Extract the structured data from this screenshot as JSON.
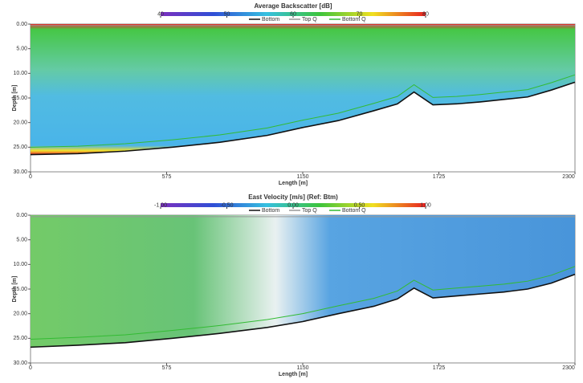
{
  "chart_data": [
    {
      "type": "heatmap",
      "title": "Average Backscatter [dB]",
      "xlabel": "Length [m]",
      "ylabel": "Depth [m]",
      "xlim": [
        0,
        2300
      ],
      "xticks": [
        0,
        575,
        1150,
        1725,
        2300
      ],
      "ylim": [
        0,
        30
      ],
      "y_reversed": true,
      "yticks": [
        {
          "value": 0,
          "label": "0.00"
        },
        {
          "value": 5,
          "label": "5.00"
        },
        {
          "value": 10,
          "label": "10.00"
        },
        {
          "value": 15,
          "label": "15.00"
        },
        {
          "value": 20,
          "label": "20.00"
        },
        {
          "value": 25,
          "label": "25.00"
        },
        {
          "value": 30,
          "label": "30.00"
        }
      ],
      "colorbar": {
        "clim": [
          40,
          80
        ],
        "ticks": [
          40,
          50,
          60,
          70,
          80
        ],
        "colors": [
          "#7b2fbe",
          "#2f4fd6",
          "#36c0e0",
          "#3cc43c",
          "#f0e020",
          "#e82020"
        ]
      },
      "x": [
        0,
        200,
        400,
        600,
        800,
        1000,
        1150,
        1300,
        1450,
        1550,
        1620,
        1700,
        1800,
        1900,
        2000,
        2100,
        2200,
        2300
      ],
      "series": [
        {
          "name": "Bottom",
          "color": "#111111",
          "values": [
            26.5,
            26.3,
            25.8,
            25,
            24,
            22.6,
            21,
            19.6,
            17.6,
            16.2,
            13.8,
            16.4,
            16.2,
            15.8,
            15.3,
            14.8,
            13.4,
            11.8
          ]
        },
        {
          "name": "Top Q",
          "color": "#999999",
          "values": [
            0.3,
            0.3,
            0.3,
            0.3,
            0.3,
            0.3,
            0.3,
            0.3,
            0.3,
            0.3,
            0.3,
            0.3,
            0.3,
            0.3,
            0.3,
            0.3,
            0.3,
            0.3
          ]
        },
        {
          "name": "Bottom Q",
          "color": "#33bb33",
          "values": [
            25,
            24.8,
            24.3,
            23.5,
            22.5,
            21.1,
            19.5,
            18.1,
            16.1,
            14.7,
            12.3,
            14.9,
            14.7,
            14.3,
            13.8,
            13.3,
            11.9,
            10.3
          ]
        }
      ]
    },
    {
      "type": "heatmap",
      "title": "East Velocity [m/s] (Ref: Btm)",
      "xlabel": "Length [m]",
      "ylabel": "Depth [m]",
      "xlim": [
        0,
        2300
      ],
      "xticks": [
        0,
        575,
        1150,
        1725,
        2300
      ],
      "ylim": [
        0,
        30
      ],
      "y_reversed": true,
      "yticks": [
        {
          "value": 0,
          "label": "0.00"
        },
        {
          "value": 5,
          "label": "5.00"
        },
        {
          "value": 10,
          "label": "10.00"
        },
        {
          "value": 15,
          "label": "15.00"
        },
        {
          "value": 20,
          "label": "20.00"
        },
        {
          "value": 25,
          "label": "25.00"
        },
        {
          "value": 30,
          "label": "30.00"
        }
      ],
      "colorbar": {
        "clim": [
          -1,
          1
        ],
        "ticks": [
          {
            "value": -1,
            "label": "-1.00"
          },
          {
            "value": -0.5,
            "label": "-0.50"
          },
          {
            "value": 0,
            "label": "0.00"
          },
          {
            "value": 0.5,
            "label": "0.50"
          },
          {
            "value": 1,
            "label": "1.00"
          }
        ],
        "colors": [
          "#7b2fbe",
          "#2f4fd6",
          "#36c0e0",
          "#3cc43c",
          "#f0e020",
          "#e82020"
        ]
      },
      "x": [
        0,
        200,
        400,
        600,
        800,
        1000,
        1150,
        1300,
        1450,
        1550,
        1620,
        1700,
        1800,
        1900,
        2000,
        2100,
        2200,
        2300
      ],
      "series": [
        {
          "name": "Bottom",
          "color": "#111111",
          "values": [
            26.8,
            26.4,
            25.9,
            25,
            24,
            22.8,
            21.6,
            20,
            18.5,
            17,
            14.8,
            16.8,
            16.4,
            16,
            15.6,
            15,
            13.8,
            12
          ]
        },
        {
          "name": "Top Q",
          "color": "#999999",
          "values": [
            0.3,
            0.3,
            0.3,
            0.3,
            0.3,
            0.3,
            0.3,
            0.3,
            0.3,
            0.3,
            0.3,
            0.3,
            0.3,
            0.3,
            0.3,
            0.3,
            0.3,
            0.3
          ]
        },
        {
          "name": "Bottom Q",
          "color": "#33bb33",
          "values": [
            25.2,
            24.8,
            24.3,
            23.4,
            22.4,
            21.2,
            20,
            18.4,
            16.9,
            15.4,
            13.2,
            15.2,
            14.8,
            14.4,
            14,
            13.4,
            12.2,
            10.4
          ]
        }
      ]
    }
  ]
}
